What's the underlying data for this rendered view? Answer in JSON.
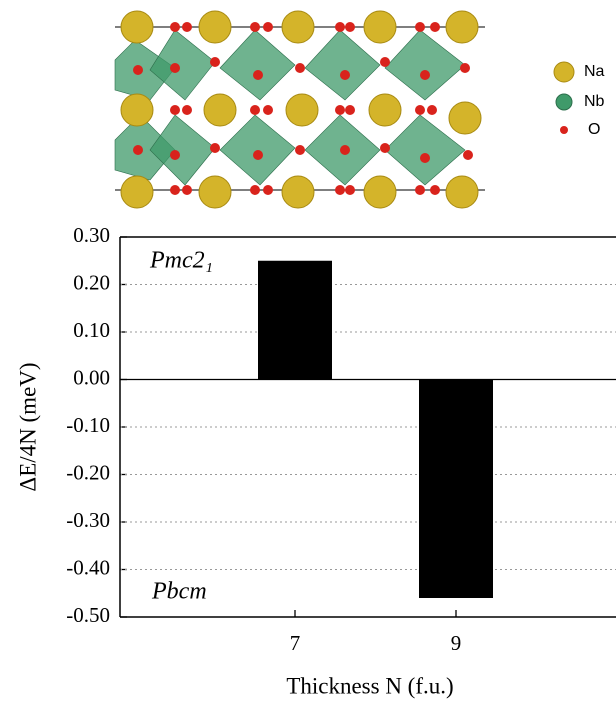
{
  "chart_data": {
    "type": "bar",
    "y_label": "ΔE/4N (meV)",
    "x_label": "Thickness N (f.u.)",
    "annotations": [
      "Pmc2₁",
      "Pbcm"
    ],
    "categories": [
      "7",
      "9"
    ],
    "values": [
      0.25,
      -0.46
    ],
    "color": "#000000",
    "ylim": [
      -0.5,
      0.3
    ],
    "yticks": [
      {
        "value": 0.3,
        "label": "0.30"
      },
      {
        "value": 0.2,
        "label": "0.20"
      },
      {
        "value": 0.1,
        "label": "0.10"
      },
      {
        "value": 0,
        "label": "0.00"
      },
      {
        "value": -0.1,
        "label": "-0.10"
      },
      {
        "value": -0.2,
        "label": "-0.20"
      },
      {
        "value": -0.3,
        "label": "-0.30"
      },
      {
        "value": -0.4,
        "label": "-0.40"
      },
      {
        "value": -0.5,
        "label": "-0.50"
      }
    ],
    "grid": true
  },
  "structure_legend": [
    "Na",
    "Nb",
    "O"
  ]
}
